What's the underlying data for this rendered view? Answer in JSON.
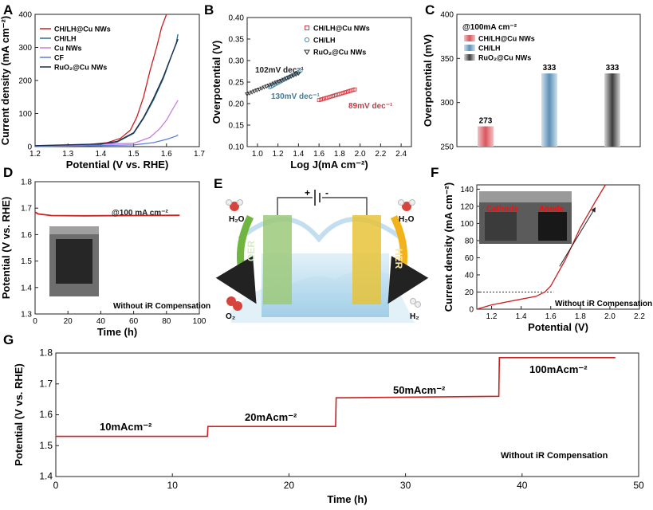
{
  "chart_data": [
    {
      "panel": "A",
      "type": "line",
      "xlabel": "Potential (V vs. RHE)",
      "ylabel": "Current density (mA cm⁻²)",
      "xlim": [
        1.2,
        1.7
      ],
      "ylim": [
        0,
        400
      ],
      "xticks": [
        "1.2",
        "1.3",
        "1.4",
        "1.5",
        "1.6",
        "1.7"
      ],
      "yticks": [
        "0",
        "100",
        "200",
        "300",
        "400"
      ],
      "series": [
        {
          "name": "CH/LH@Cu NWs",
          "color": "#cc1f1f",
          "x": [
            1.2,
            1.35,
            1.42,
            1.46,
            1.49,
            1.51,
            1.53,
            1.55,
            1.57,
            1.585,
            1.6
          ],
          "y": [
            2,
            5,
            12,
            25,
            50,
            90,
            150,
            230,
            300,
            360,
            400
          ]
        },
        {
          "name": "CH/LH",
          "color": "#2a6e8c",
          "x": [
            1.2,
            1.4,
            1.45,
            1.5,
            1.53,
            1.56,
            1.59,
            1.61,
            1.63,
            1.635
          ],
          "y": [
            2,
            6,
            14,
            40,
            85,
            140,
            205,
            260,
            315,
            340
          ]
        },
        {
          "name": "Cu NWs",
          "color": "#c77fdc",
          "x": [
            1.2,
            1.5,
            1.55,
            1.58,
            1.6,
            1.62,
            1.635
          ],
          "y": [
            1,
            10,
            28,
            55,
            80,
            115,
            140
          ]
        },
        {
          "name": "CF",
          "color": "#5a7ee0",
          "x": [
            1.2,
            1.5,
            1.56,
            1.6,
            1.63,
            1.635
          ],
          "y": [
            0,
            5,
            12,
            22,
            32,
            36
          ]
        },
        {
          "name": "RuO₂@Cu NWs",
          "color": "#1a2a4a",
          "x": [
            1.2,
            1.4,
            1.45,
            1.5,
            1.53,
            1.56,
            1.59,
            1.61,
            1.63,
            1.635
          ],
          "y": [
            3,
            8,
            16,
            42,
            88,
            145,
            210,
            262,
            312,
            325
          ]
        }
      ]
    },
    {
      "panel": "B",
      "type": "scatter",
      "xlabel": "Log J(mA cm⁻²)",
      "ylabel": "Overpotential (V)",
      "xlim": [
        0.9,
        2.5
      ],
      "ylim": [
        0.1,
        0.4
      ],
      "xticks": [
        "1.0",
        "1.2",
        "1.4",
        "1.6",
        "1.8",
        "2.0",
        "2.2",
        "2.4"
      ],
      "yticks": [
        "0.10",
        "0.15",
        "0.20",
        "0.25",
        "0.30",
        "0.35",
        "0.40"
      ],
      "series": [
        {
          "name": "CH/LH@Cu NWs",
          "color": "#d0434a",
          "marker": "square",
          "x0": 1.6,
          "y0": 0.208,
          "x1": 1.95,
          "y1": 0.233
        },
        {
          "name": "CH/LH",
          "color": "#4a8aa8",
          "marker": "circle",
          "x0": 1.12,
          "y0": 0.238,
          "x1": 1.42,
          "y1": 0.276
        },
        {
          "name": "RuO₂@Cu NWs",
          "color": "#2c2c2c",
          "marker": "triangle",
          "x0": 0.9,
          "y0": 0.222,
          "x1": 1.4,
          "y1": 0.27
        }
      ],
      "annotations": [
        "102mV dec⁻¹",
        "130mV dec⁻¹",
        "89mV dec⁻¹"
      ]
    },
    {
      "panel": "C",
      "type": "bar",
      "ylabel": "Overpotential (mV)",
      "ylim": [
        250,
        400
      ],
      "yticks": [
        "250",
        "300",
        "350",
        "400"
      ],
      "note": "@100mA cm⁻²",
      "categories": [
        "CH/LH@Cu NWs",
        "CH/LH",
        "RuO₂@Cu NWs"
      ],
      "values": [
        273,
        333,
        333
      ],
      "value_labels": [
        "273",
        "333",
        "333"
      ],
      "colors": [
        "#d9565e",
        "#5d8fb5",
        "#6a6a6a"
      ]
    },
    {
      "panel": "D",
      "type": "line",
      "xlabel": "Time (h)",
      "ylabel": "Potential (V vs. RHE)",
      "xlim": [
        0,
        100
      ],
      "ylim": [
        1.3,
        1.8
      ],
      "xticks": [
        "0",
        "20",
        "40",
        "60",
        "80",
        "100"
      ],
      "yticks": [
        "1.3",
        "1.4",
        "1.5",
        "1.6",
        "1.7",
        "1.8"
      ],
      "series": [
        {
          "name": "",
          "color": "#cc1f1f",
          "x": [
            0,
            2,
            10,
            30,
            60,
            88
          ],
          "y": [
            1.685,
            1.678,
            1.672,
            1.671,
            1.672,
            1.673
          ]
        }
      ],
      "annotations": [
        "@100 mA cm⁻²",
        "Without iR Compensation"
      ]
    },
    {
      "panel": "F",
      "type": "line",
      "xlabel": "Potential (V)",
      "ylabel": "Current density (mA cm⁻²)",
      "xlim": [
        1.1,
        2.2
      ],
      "ylim": [
        0,
        145
      ],
      "xticks": [
        "1.2",
        "1.4",
        "1.6",
        "1.8",
        "2.0",
        "2.2"
      ],
      "yticks": [
        "0",
        "20",
        "40",
        "60",
        "80",
        "100",
        "120",
        "140"
      ],
      "series": [
        {
          "name": "",
          "color": "#cc1f1f",
          "x": [
            1.1,
            1.2,
            1.35,
            1.5,
            1.56,
            1.6,
            1.7,
            1.8,
            1.9,
            1.97
          ],
          "y": [
            0,
            5,
            10,
            15,
            20,
            27,
            58,
            95,
            125,
            145
          ]
        }
      ],
      "reference_y": 20,
      "annotations": [
        "Without iR Compensation",
        "Cathode",
        "Anode"
      ]
    },
    {
      "panel": "G",
      "type": "line",
      "xlabel": "Time (h)",
      "ylabel": "Potential (V vs. RHE)",
      "xlim": [
        0,
        50
      ],
      "ylim": [
        1.4,
        1.8
      ],
      "xticks": [
        "0",
        "10",
        "20",
        "30",
        "40",
        "50"
      ],
      "yticks": [
        "1.4",
        "1.5",
        "1.6",
        "1.7",
        "1.8"
      ],
      "series": [
        {
          "name": "",
          "color": "#cc1f1f",
          "x": [
            0,
            13,
            13.05,
            13.3,
            24,
            24.05,
            24.4,
            38,
            38.05,
            38.3,
            48
          ],
          "y": [
            1.53,
            1.53,
            1.562,
            1.562,
            1.562,
            1.655,
            1.655,
            1.66,
            1.785,
            1.785,
            1.785
          ]
        }
      ],
      "annotations": [
        "10mAcm⁻²",
        "20mAcm⁻²",
        "50mAcm⁻²",
        "100mAcm⁻²",
        "Without iR Compensation"
      ]
    }
  ],
  "panel_labels": [
    "A",
    "B",
    "C",
    "D",
    "E",
    "F",
    "G"
  ],
  "schematic_E": {
    "left_label": "OER",
    "right_label": "HER",
    "left_in": "H₂O",
    "right_in": "H₂O",
    "left_out": "O₂",
    "right_out": "H₂",
    "plus": "+",
    "minus": "-"
  },
  "photo_F": {
    "cathode": "Cathode",
    "anode": "Anode"
  }
}
